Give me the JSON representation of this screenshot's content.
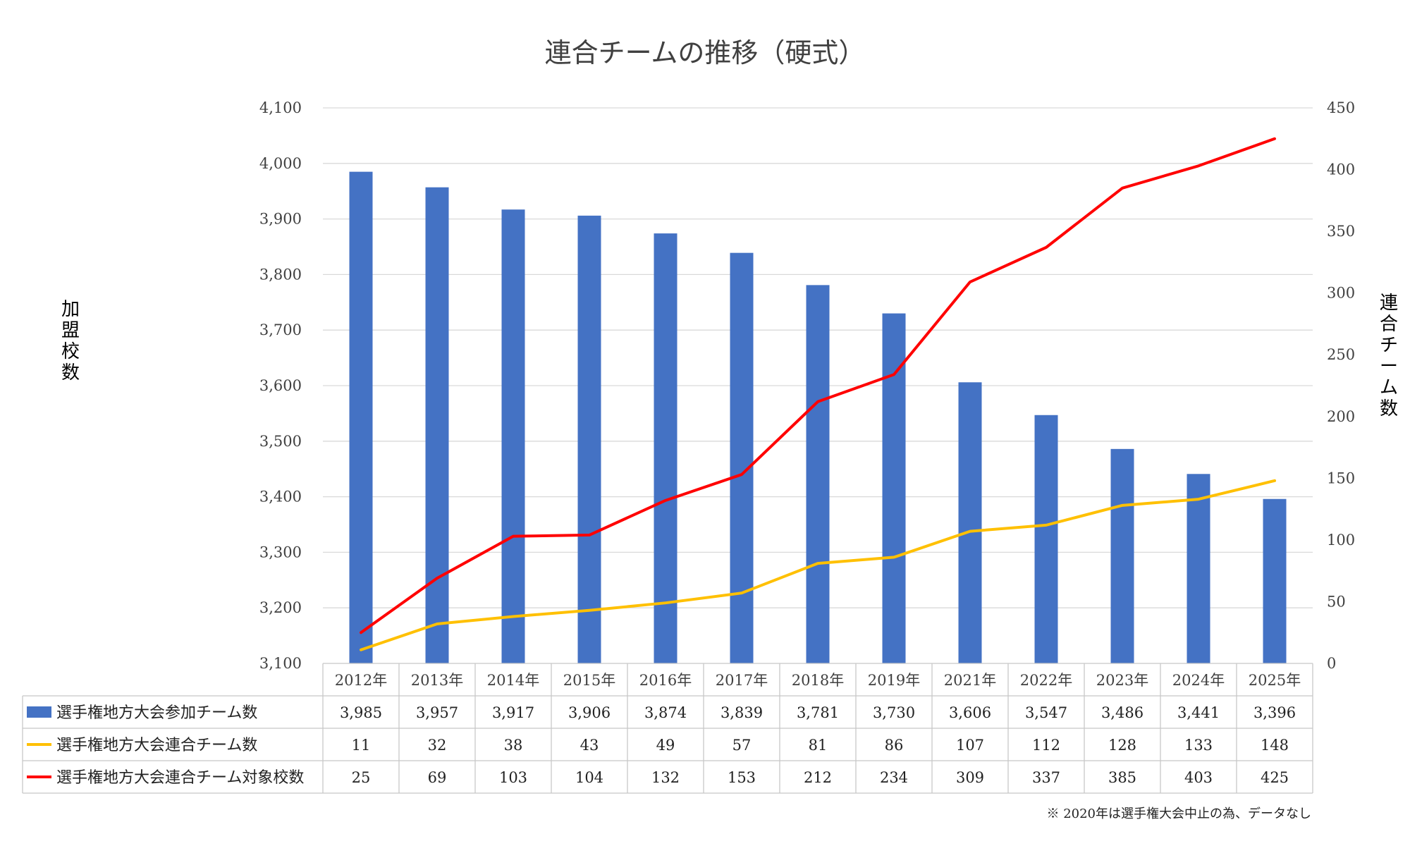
{
  "chart_data": {
    "type": "bar",
    "title": "連合チームの推移（硬式）",
    "ylabel_left": "加盟校数",
    "ylabel_right": "連合チーム数",
    "categories": [
      "2012年",
      "2013年",
      "2014年",
      "2015年",
      "2016年",
      "2017年",
      "2018年",
      "2019年",
      "2021年",
      "2022年",
      "2023年",
      "2024年",
      "2025年"
    ],
    "ylim_left": [
      3100,
      4100
    ],
    "ylim_right": [
      0,
      450
    ],
    "yticks_left": [
      "3,100",
      "3,200",
      "3,300",
      "3,400",
      "3,500",
      "3,600",
      "3,700",
      "3,800",
      "3,900",
      "4,000",
      "4,100"
    ],
    "yticks_right": [
      "0",
      "50",
      "100",
      "150",
      "200",
      "250",
      "300",
      "350",
      "400",
      "450"
    ],
    "grid": true,
    "legend_placement": "data table below chart",
    "series": [
      {
        "name": "選手権地方大会参加チーム数",
        "type": "bar",
        "axis": "left",
        "color": "#4472c4",
        "values": [
          3985,
          3957,
          3917,
          3906,
          3874,
          3839,
          3781,
          3730,
          3606,
          3547,
          3486,
          3441,
          3396
        ],
        "labels": [
          "3,985",
          "3,957",
          "3,917",
          "3,906",
          "3,874",
          "3,839",
          "3,781",
          "3,730",
          "3,606",
          "3,547",
          "3,486",
          "3,441",
          "3,396"
        ]
      },
      {
        "name": "選手権地方大会連合チーム数",
        "type": "line",
        "axis": "right",
        "color": "#ffc000",
        "values": [
          11,
          32,
          38,
          43,
          49,
          57,
          81,
          86,
          107,
          112,
          128,
          133,
          148
        ],
        "labels": [
          "11",
          "32",
          "38",
          "43",
          "49",
          "57",
          "81",
          "86",
          "107",
          "112",
          "128",
          "133",
          "148"
        ]
      },
      {
        "name": "選手権地方大会連合チーム対象校数",
        "type": "line",
        "axis": "right",
        "color": "#ff0000",
        "values": [
          25,
          69,
          103,
          104,
          132,
          153,
          212,
          234,
          309,
          337,
          385,
          403,
          425
        ],
        "labels": [
          "25",
          "69",
          "103",
          "104",
          "132",
          "153",
          "212",
          "234",
          "309",
          "337",
          "385",
          "403",
          "425"
        ]
      }
    ],
    "note": "※ 2020年は選手権大会中止の為、データなし"
  }
}
